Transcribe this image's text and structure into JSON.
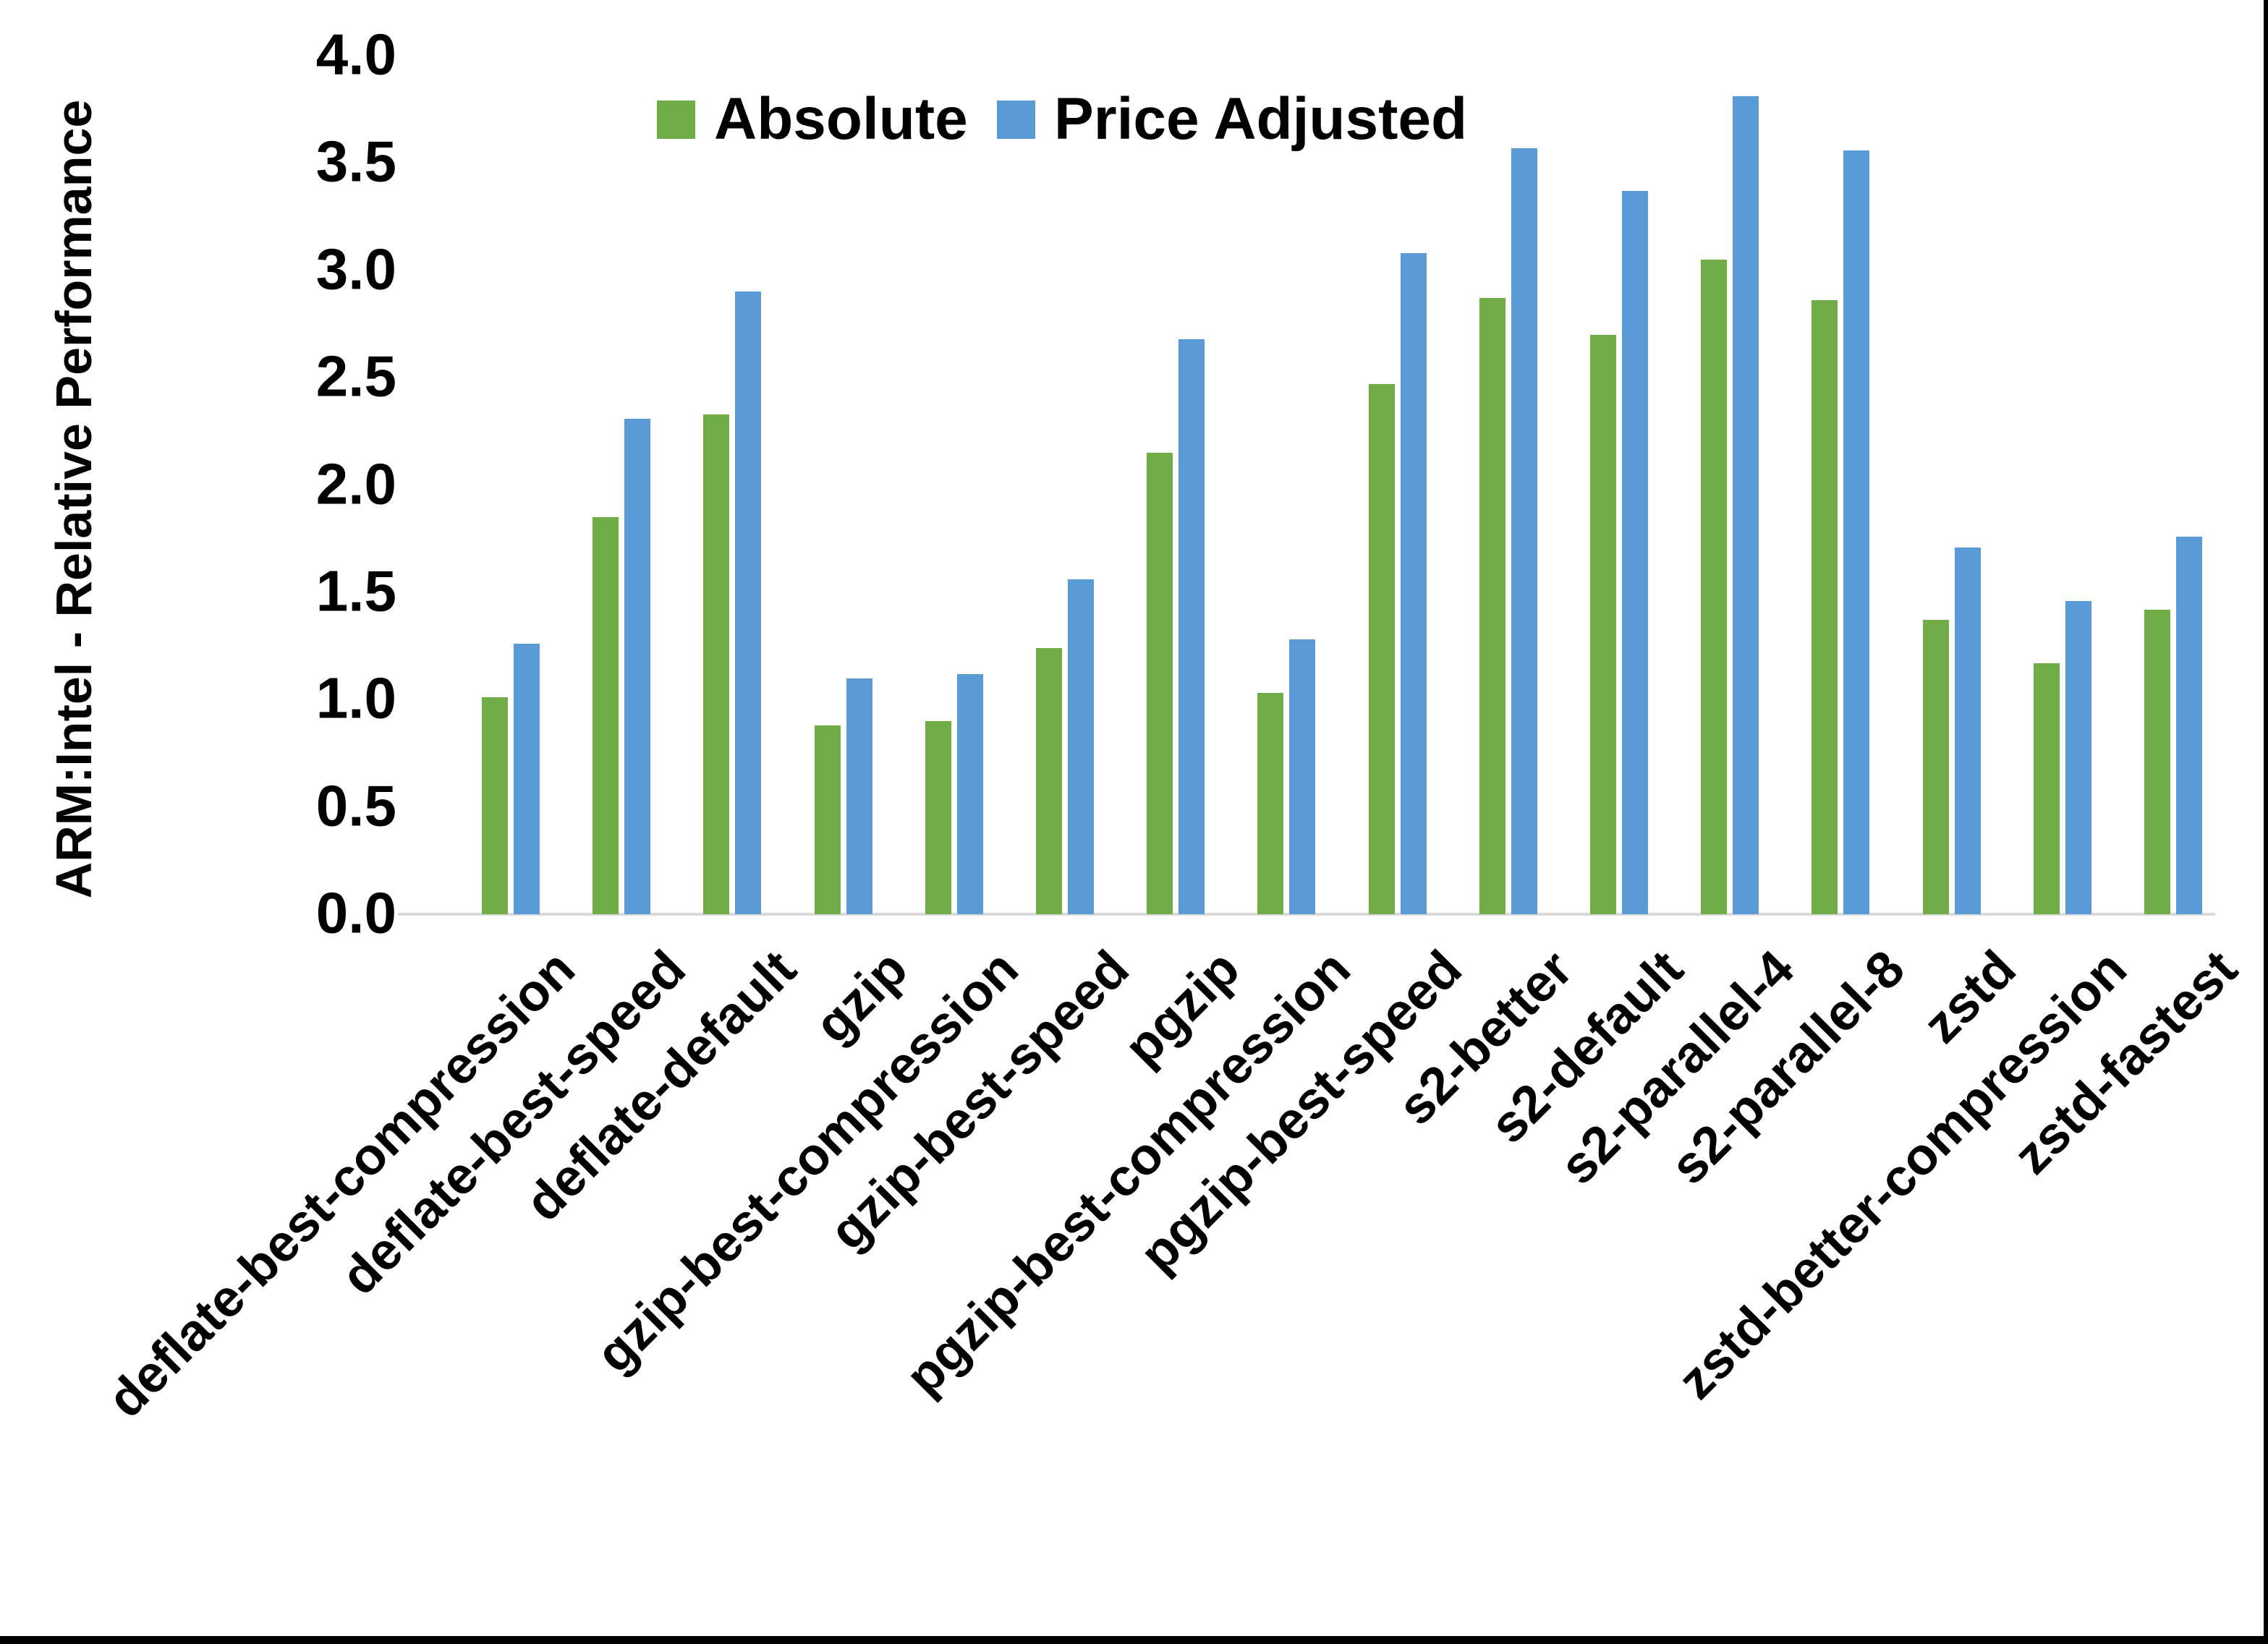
{
  "y_axis_title": "ARM:Intel - Relative Performance",
  "colors": {
    "absolute_green": "#70AD47",
    "price_adjusted_blue": "#5B9BD5",
    "axis_line": "#D9D9D9",
    "text": "#000000"
  },
  "chart_data": {
    "type": "bar",
    "title": "",
    "xlabel": "",
    "ylabel": "ARM:Intel - Relative Performance",
    "ylim": [
      0,
      4
    ],
    "ytick_step": 0.5,
    "yticks": [
      "0.0",
      "0.5",
      "1.0",
      "1.5",
      "2.0",
      "2.5",
      "3.0",
      "3.5",
      "4.0"
    ],
    "grid": false,
    "legend_position": "top-center",
    "categories": [
      "deflate-best-compression",
      "deflate-best-speed",
      "deflate-default",
      "gzip",
      "gzip-best-compression",
      "gzip-best-speed",
      "pgzip",
      "pgzip-best-compression",
      "pgzip-best-speed",
      "s2-better",
      "s2-default",
      "s2-parallel-4",
      "s2-parallel-8",
      "zstd",
      "zstd-better-compression",
      "zstd-fastest"
    ],
    "series": [
      {
        "name": "Absolute",
        "color": "#70AD47",
        "values": [
          1.01,
          1.85,
          2.33,
          0.88,
          0.9,
          1.24,
          2.15,
          1.03,
          2.47,
          2.87,
          2.7,
          3.05,
          2.86,
          1.37,
          1.17,
          1.42
        ]
      },
      {
        "name": "Price Adjusted",
        "color": "#5B9BD5",
        "values": [
          1.26,
          2.31,
          2.9,
          1.1,
          1.12,
          1.56,
          2.68,
          1.28,
          3.08,
          3.57,
          3.37,
          3.81,
          3.56,
          1.71,
          1.46,
          1.76
        ]
      }
    ]
  }
}
